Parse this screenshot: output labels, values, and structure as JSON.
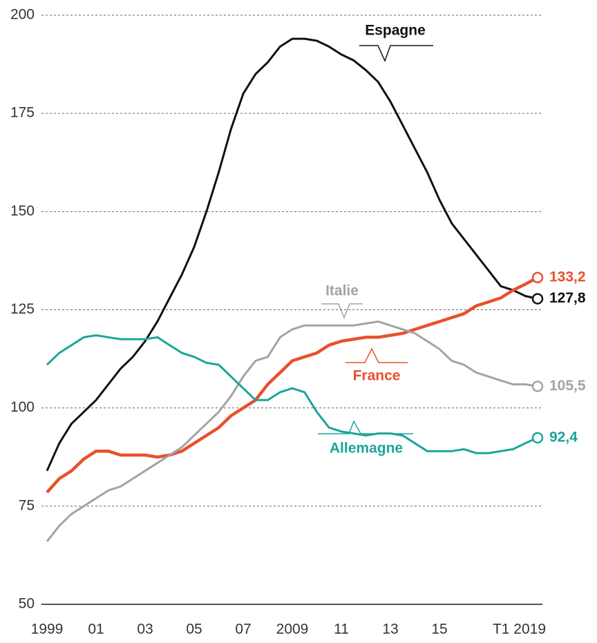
{
  "chart_data": {
    "type": "line",
    "x": [
      1999,
      1999.5,
      2000,
      2000.5,
      2001,
      2001.5,
      2002,
      2002.5,
      2003,
      2003.5,
      2004,
      2004.5,
      2005,
      2005.5,
      2006,
      2006.5,
      2007,
      2007.5,
      2008,
      2008.5,
      2009,
      2009.5,
      2010,
      2010.5,
      2011,
      2011.5,
      2012,
      2012.5,
      2013,
      2013.5,
      2014,
      2014.5,
      2015,
      2015.5,
      2016,
      2016.5,
      2017,
      2017.5,
      2018,
      2018.5,
      2019
    ],
    "xlim": [
      1999,
      2019
    ],
    "xticks": [
      1999,
      {
        "value": 2001,
        "label": "01"
      },
      {
        "value": 2003,
        "label": "03"
      },
      {
        "value": 2005,
        "label": "05"
      },
      {
        "value": 2007,
        "label": "07"
      },
      2009,
      {
        "value": 2011,
        "label": "11"
      },
      {
        "value": 2013,
        "label": "13"
      },
      {
        "value": 2015,
        "label": "15"
      },
      {
        "value": 2019,
        "label": "T1 2019"
      }
    ],
    "ylim": [
      50,
      200
    ],
    "yticks": [
      50,
      75,
      100,
      125,
      150,
      175,
      200
    ],
    "grid": true,
    "series": [
      {
        "name": "Espagne",
        "color": "#111111",
        "values": [
          84,
          91,
          96,
          99,
          102,
          106,
          110,
          113,
          117,
          122,
          128,
          134,
          141,
          150,
          160,
          171,
          180,
          185,
          188,
          192,
          194,
          194,
          193.5,
          192,
          190,
          188.5,
          186,
          183,
          178,
          172,
          166,
          160,
          153,
          147,
          143,
          139,
          135,
          131,
          130,
          128.5,
          127.8
        ],
        "value_labels": [
          null,
          null,
          null,
          null,
          null,
          null,
          null,
          null,
          null,
          null,
          null,
          null,
          null,
          null,
          null,
          null,
          null,
          null,
          null,
          null,
          null,
          null,
          null,
          null,
          null,
          null,
          null,
          null,
          null,
          null,
          null,
          null,
          null,
          null,
          null,
          null,
          null,
          null,
          null,
          null,
          "127,8"
        ]
      },
      {
        "name": "France",
        "color": "#e8502e",
        "values": [
          78.5,
          82,
          84,
          87,
          89,
          89,
          88,
          88,
          88,
          87.5,
          88,
          89,
          91,
          93,
          95,
          98,
          100,
          102,
          106,
          109,
          112,
          113,
          114,
          116,
          117,
          117.5,
          118,
          118,
          118.5,
          119,
          120,
          121,
          122,
          123,
          124,
          126,
          127,
          128,
          130,
          131.5,
          133.2
        ],
        "value_labels": [
          null,
          null,
          null,
          null,
          null,
          null,
          null,
          null,
          null,
          null,
          null,
          null,
          null,
          null,
          null,
          null,
          null,
          null,
          null,
          null,
          null,
          null,
          null,
          null,
          null,
          null,
          null,
          null,
          null,
          null,
          null,
          null,
          null,
          null,
          null,
          null,
          null,
          null,
          null,
          null,
          "133,2"
        ]
      },
      {
        "name": "Italie",
        "color": "#a3a3a3",
        "values": [
          66,
          70,
          73,
          75,
          77,
          79,
          80,
          82,
          84,
          86,
          88,
          90,
          93,
          96,
          99,
          103,
          108,
          112,
          113,
          118,
          120,
          121,
          121,
          121,
          121,
          121,
          121.5,
          122,
          121,
          120,
          119,
          117,
          115,
          112,
          111,
          109,
          108,
          107,
          106,
          106,
          105.5
        ],
        "value_labels": [
          null,
          null,
          null,
          null,
          null,
          null,
          null,
          null,
          null,
          null,
          null,
          null,
          null,
          null,
          null,
          null,
          null,
          null,
          null,
          null,
          null,
          null,
          null,
          null,
          null,
          null,
          null,
          null,
          null,
          null,
          null,
          null,
          null,
          null,
          null,
          null,
          null,
          null,
          null,
          null,
          "105,5"
        ]
      },
      {
        "name": "Allemagne",
        "color": "#1aa59a",
        "values": [
          111,
          114,
          116,
          118,
          118.5,
          118,
          117.5,
          117.5,
          117.5,
          118,
          116,
          114,
          113,
          111.5,
          111,
          108,
          105,
          102,
          102,
          104,
          105,
          104,
          99,
          95,
          94,
          93.5,
          93,
          93.5,
          93.5,
          93,
          91,
          89,
          89,
          89,
          89.5,
          88.5,
          88.5,
          89,
          89.5,
          91,
          92.4
        ],
        "value_labels": [
          null,
          null,
          null,
          null,
          null,
          null,
          null,
          null,
          null,
          null,
          null,
          null,
          null,
          null,
          null,
          null,
          null,
          null,
          null,
          null,
          null,
          null,
          null,
          null,
          null,
          null,
          null,
          null,
          null,
          null,
          null,
          null,
          null,
          null,
          null,
          null,
          null,
          null,
          null,
          null,
          "92,4"
        ]
      }
    ]
  }
}
